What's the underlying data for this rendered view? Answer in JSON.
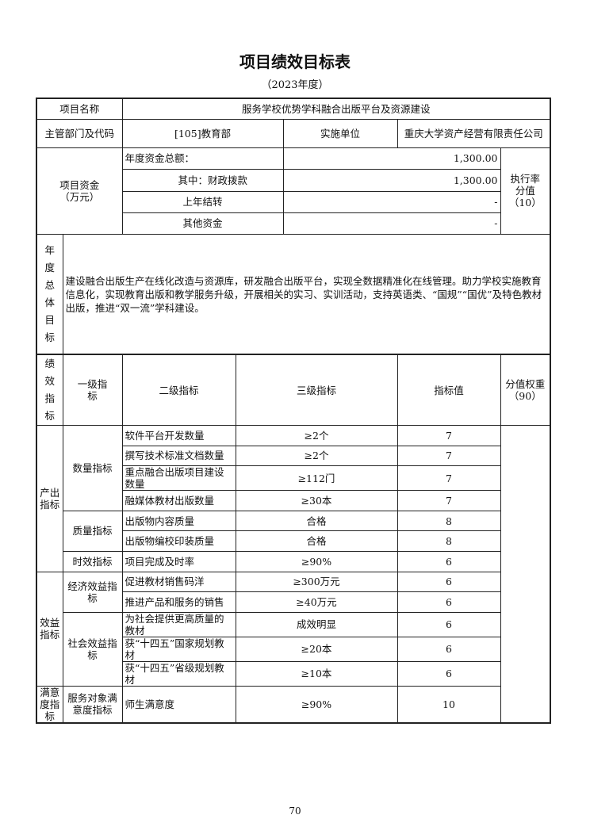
{
  "title": "项目绩效目标表",
  "year": "（2023年度）",
  "project": {
    "name_label": "项目名称",
    "name": "服务学校优势学科融合出版平台及资源建设",
    "dept_label": "主管部门及代码",
    "dept": "[105]教育部",
    "unit_label": "实施单位",
    "unit": "重庆大学资产经营有限责任公司",
    "funds_label": "项目资金（万元）",
    "funds": [
      {
        "label": "年度资金总额：",
        "value": "1,300.00"
      },
      {
        "label": "其中：财政拨款",
        "value": "1,300.00"
      },
      {
        "label": "上年结转",
        "value": "-"
      },
      {
        "label": "其他资金",
        "value": "-"
      }
    ],
    "exec_label": "执行率分值（10）",
    "goal_label": "年度总体目标",
    "goal": "建设融合出版生产在线化改造与资源库，研发融合出版平台，实现全数据精准化在线管理。助力学校实施教育信息化，实现教育出版和教学服务升级，开展相关的实习、实训活动，支持英语类、“国规”“国优”及特色教材出版，推进“双一流”学科建设。"
  },
  "indicators": {
    "section_label": "绩效指标",
    "headers": [
      "一级指标",
      "二级指标",
      "三级指标",
      "指标值",
      "分值权重（90）"
    ],
    "level1": [
      "产出指标",
      "效益指标",
      "满意度指标"
    ],
    "level2": [
      "数量指标",
      "质量指标",
      "时效指标",
      "经济效益指标",
      "社会效益指标",
      "服务对象满意度指标"
    ],
    "rows": [
      {
        "name": "软件平台开发数量",
        "value": "≥2个",
        "weight": "7"
      },
      {
        "name": "撰写技术标准文档数量",
        "value": "≥2个",
        "weight": "7"
      },
      {
        "name": "重点融合出版项目建设数量",
        "value": "≥112门",
        "weight": "7"
      },
      {
        "name": "融媒体教材出版数量",
        "value": "≥30本",
        "weight": "7"
      },
      {
        "name": "出版物内容质量",
        "value": "合格",
        "weight": "8"
      },
      {
        "name": "出版物编校印装质量",
        "value": "合格",
        "weight": "8"
      },
      {
        "name": "项目完成及时率",
        "value": "≥90%",
        "weight": "6"
      },
      {
        "name": "促进教材销售码洋",
        "value": "≥300万元",
        "weight": "6"
      },
      {
        "name": "推进产品和服务的销售",
        "value": "≥40万元",
        "weight": "6"
      },
      {
        "name": "为社会提供更高质量的教材",
        "value": "成效明显",
        "weight": "6"
      },
      {
        "name": "获“十四五”国家规划教材",
        "value": "≥20本",
        "weight": "6"
      },
      {
        "name": "获“十四五”省级规划教材",
        "value": "≥10本",
        "weight": "6"
      },
      {
        "name": "师生满意度",
        "value": "≥90%",
        "weight": "10"
      }
    ]
  },
  "page_number": "70"
}
